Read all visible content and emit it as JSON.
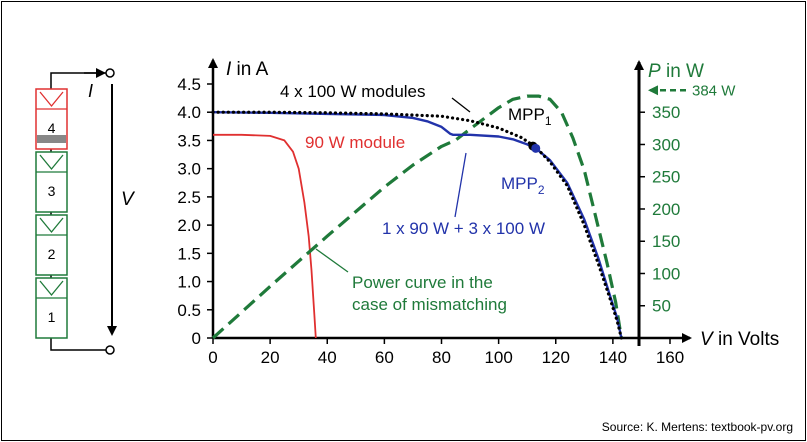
{
  "chart_data": {
    "type": "line",
    "x_axis": {
      "label": "V in Volts",
      "min": 0,
      "max": 160,
      "ticks": [
        0,
        20,
        40,
        60,
        80,
        100,
        120,
        140,
        160
      ]
    },
    "y_left_axis": {
      "label": "I in A",
      "min": 0,
      "max": 4.5,
      "ticks": [
        0,
        0.5,
        1.0,
        1.5,
        2.0,
        2.5,
        3.0,
        3.5,
        4.0,
        4.5
      ],
      "tick_labels": [
        "0",
        "0.5",
        "1.0",
        "1.5",
        "2.0",
        "2.5",
        "3.0",
        "3.5",
        "4.0",
        "4.5"
      ]
    },
    "y_right_axis": {
      "label": "P in W",
      "min": 0,
      "max": 393.75,
      "ticks": [
        50,
        100,
        150,
        200,
        250,
        300,
        350
      ],
      "marker_label": "384 W",
      "marker_value": 384,
      "color": "#1f7a3a"
    },
    "grid": false,
    "series": [
      {
        "name": "4 x 100 W modules",
        "axis": "left",
        "color": "#000000",
        "style": "dotted",
        "x": [
          0,
          20,
          40,
          60,
          80,
          90,
          100,
          108,
          113,
          118,
          124,
          130,
          135,
          139,
          141.5,
          143
        ],
        "y": [
          4.0,
          4.0,
          3.99,
          3.97,
          3.93,
          3.85,
          3.72,
          3.55,
          3.38,
          3.12,
          2.7,
          2.0,
          1.3,
          0.7,
          0.3,
          0
        ]
      },
      {
        "name": "1 x 90 W + 3 x 100 W",
        "axis": "left",
        "color": "#2233aa",
        "style": "solid",
        "x": [
          0,
          20,
          40,
          60,
          70,
          75,
          80,
          83,
          84,
          90,
          100,
          105,
          110,
          113,
          118,
          124,
          130,
          135,
          139,
          141.5,
          143
        ],
        "y": [
          4.0,
          3.99,
          3.97,
          3.95,
          3.9,
          3.84,
          3.74,
          3.62,
          3.6,
          3.6,
          3.57,
          3.52,
          3.43,
          3.36,
          3.15,
          2.75,
          2.1,
          1.4,
          0.75,
          0.35,
          0
        ]
      },
      {
        "name": "90 W module",
        "axis": "left",
        "color": "#e03030",
        "style": "solid",
        "x": [
          0,
          10,
          20,
          25,
          28,
          30,
          32,
          33.5,
          34.5,
          35.5,
          36
        ],
        "y": [
          3.6,
          3.6,
          3.58,
          3.5,
          3.3,
          3.0,
          2.4,
          1.8,
          1.2,
          0.4,
          0
        ]
      },
      {
        "name": "Power curve in the case of mismatching",
        "axis": "right",
        "color": "#1f7a3a",
        "style": "dashed",
        "x": [
          0,
          10,
          20,
          30,
          40,
          50,
          60,
          70,
          80,
          85,
          90,
          100,
          105,
          110,
          114,
          118,
          122,
          126,
          130,
          134,
          138,
          141,
          143
        ],
        "y": [
          0,
          40,
          80,
          119,
          158,
          196,
          234,
          268,
          297,
          307,
          324,
          357,
          370,
          375,
          375,
          370,
          350,
          310,
          260,
          188,
          115,
          55,
          0
        ]
      }
    ],
    "annotations": [
      {
        "text": "4 x 100 W modules",
        "color": "#000000"
      },
      {
        "text": "MPP",
        "sub": "1",
        "x": 112,
        "y": 3.4,
        "color": "#000000"
      },
      {
        "text": "MPP",
        "sub": "2",
        "x": 113,
        "y": 3.36,
        "color": "#2233aa"
      },
      {
        "text": "90 W module",
        "color": "#e03030"
      },
      {
        "text": "1 x 90 W + 3 x 100 W",
        "color": "#2233aa"
      },
      {
        "text": "Power curve in the",
        "color": "#1f7a3a"
      },
      {
        "text": "case of mismatching",
        "color": "#1f7a3a"
      }
    ]
  },
  "schematic": {
    "modules": [
      "4",
      "3",
      "2",
      "1"
    ],
    "current_label": "I",
    "voltage_label": "V",
    "colors": {
      "shaded": "#e03030",
      "normal": "#1f7a3a",
      "shade_bar": "#888888"
    }
  },
  "source": "Source: K. Mertens: textbook-pv.org"
}
